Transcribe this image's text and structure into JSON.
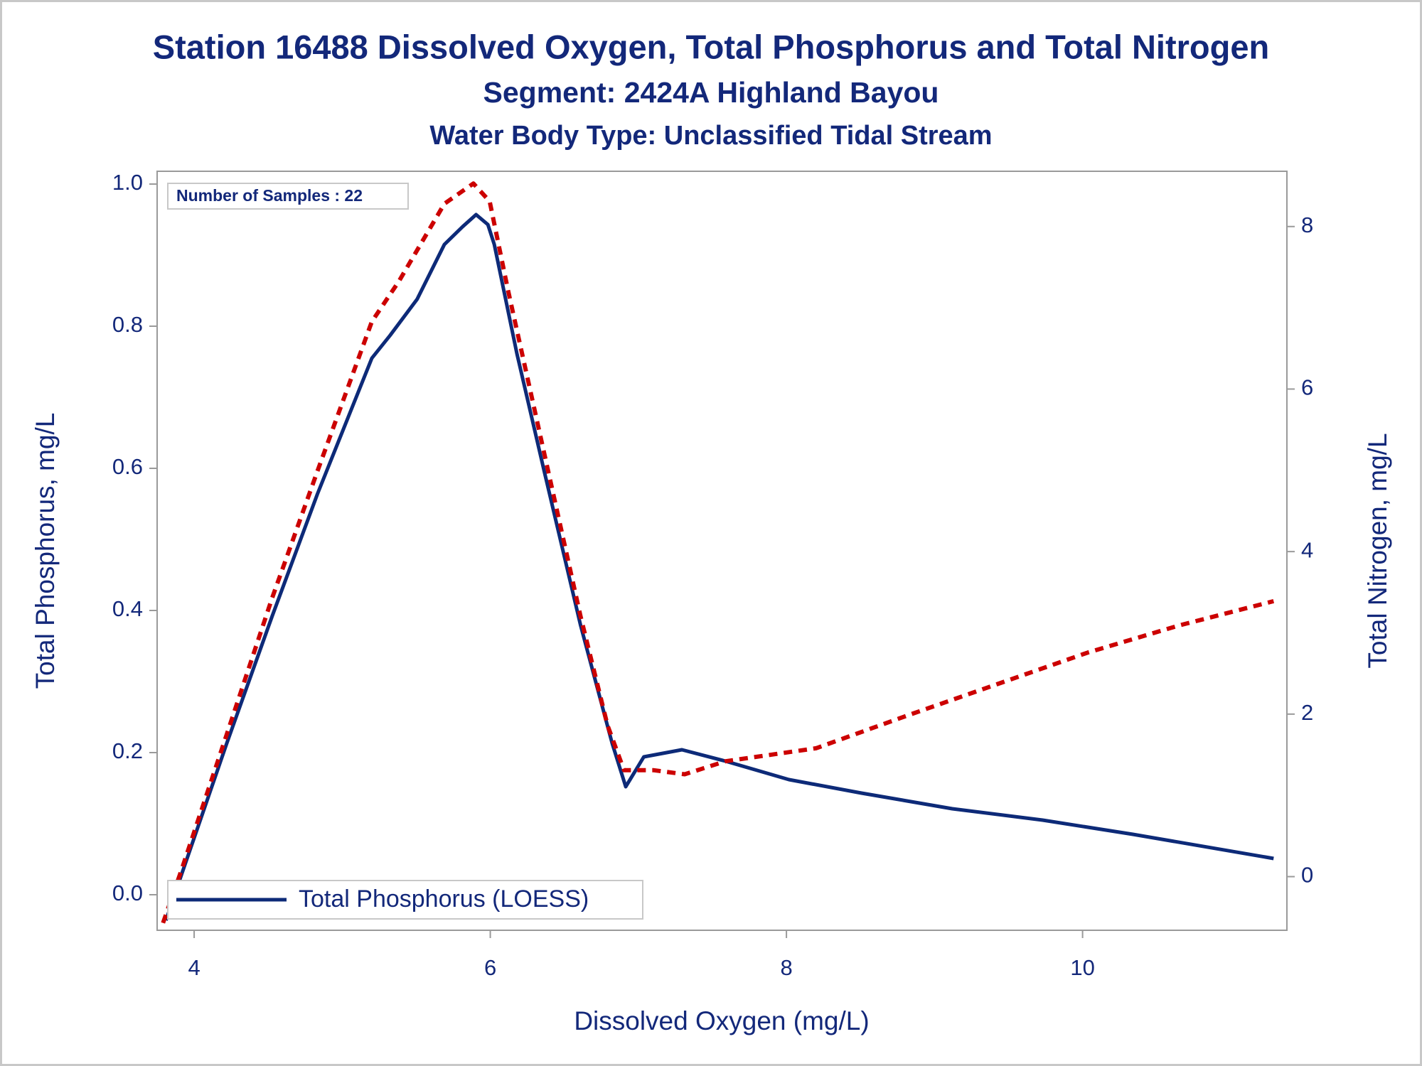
{
  "chart_data": {
    "type": "line",
    "title": "Station 16488  Dissolved Oxygen, Total Phosphorus and Total Nitrogen",
    "subtitle": "Segment: 2424A  Highland Bayou",
    "subtitle2": "Water Body Type: Unclassified Tidal Stream",
    "xlabel": "Dissolved Oxygen (mg/L)",
    "ylabel": "Total Phosphorus, mg/L",
    "y2label": "Total Nitrogen, mg/L",
    "annotation": "Number of Samples : 22",
    "legend": "lower left",
    "xlim": [
      3.75,
      11.38
    ],
    "xticks": [
      4,
      6,
      8,
      10
    ],
    "ylim": [
      -0.05,
      1.018
    ],
    "yticks": [
      {
        "value": 0,
        "label": "0.0"
      },
      0.2,
      0.4,
      0.6,
      0.8,
      {
        "value": 1,
        "label": "1.0"
      }
    ],
    "y2lim": [
      -0.66,
      8.68
    ],
    "y2ticks": [
      0,
      2,
      4,
      6,
      8
    ],
    "series": [
      {
        "name": "Total Phosphorus (LOESS)",
        "color": "#0d2a78",
        "dash": false,
        "x": [
          3.81,
          3.914,
          4.22,
          4.527,
          4.833,
          5.2,
          5.323,
          5.506,
          5.69,
          5.813,
          5.904,
          5.984,
          6.027,
          6.18,
          6.364,
          6.61,
          6.823,
          6.915,
          7.037,
          7.294,
          7.588,
          8.017,
          8.507,
          9.12,
          9.73,
          10.34,
          11.29
        ],
        "values": [
          -0.036,
          0.028,
          0.213,
          0.392,
          0.564,
          0.755,
          0.787,
          0.838,
          0.915,
          0.94,
          0.957,
          0.943,
          0.915,
          0.761,
          0.596,
          0.379,
          0.213,
          0.152,
          0.194,
          0.204,
          0.188,
          0.162,
          0.143,
          0.121,
          0.105,
          0.085,
          0.051
        ]
      },
      {
        "color": "#cc0000",
        "dash": true,
        "axis": "y2",
        "x": [
          3.79,
          3.914,
          4.22,
          4.527,
          4.833,
          5.2,
          5.384,
          5.69,
          5.886,
          5.996,
          6.119,
          6.364,
          6.61,
          6.792,
          6.903,
          7.1,
          7.313,
          7.588,
          8.2,
          8.813,
          9.426,
          10.04,
          10.65,
          11.29
        ],
        "values": [
          -0.57,
          0.08,
          1.75,
          3.43,
          4.99,
          6.83,
          7.33,
          8.28,
          8.53,
          8.31,
          7.22,
          5.21,
          3.2,
          1.86,
          1.31,
          1.31,
          1.26,
          1.42,
          1.58,
          1.98,
          2.37,
          2.76,
          3.09,
          3.39
        ]
      }
    ]
  }
}
